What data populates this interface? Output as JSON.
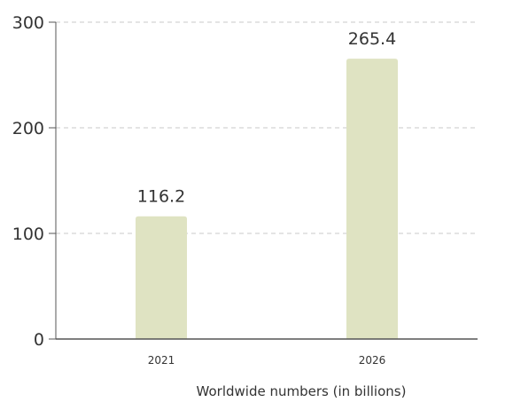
{
  "chart_data": {
    "type": "bar",
    "categories": [
      "2021",
      "2026"
    ],
    "values": [
      116.2,
      265.4
    ],
    "value_labels": [
      "116.2",
      "265.4"
    ],
    "title": "",
    "xlabel": "Worldwide numbers (in billions)",
    "ylabel": "",
    "ylim": [
      0,
      300
    ],
    "yticks": [
      0,
      100,
      200,
      300
    ],
    "ytick_labels": [
      "0",
      "100",
      "200",
      "300"
    ],
    "grid": "horizontal dashed",
    "legend": "none",
    "colors": {
      "bar": "#dfe3c2",
      "grid": "#c8c8c8",
      "axis": "#555555",
      "text": "#333333"
    }
  }
}
